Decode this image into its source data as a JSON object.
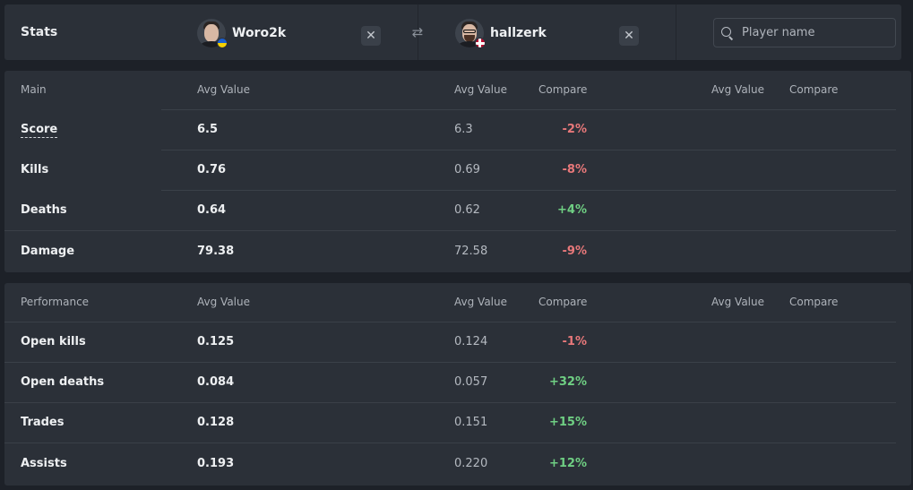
{
  "header": {
    "stats_label": "Stats",
    "player1": {
      "name": "Woro2k",
      "flag": "ukraine-flag"
    },
    "player2": {
      "name": "hallzerk",
      "flag": "norway-flag"
    },
    "search_placeholder": "Player name"
  },
  "main": {
    "section_label": "Main",
    "col_avg": "Avg Value",
    "col_compare": "Compare",
    "rows": [
      {
        "label": "Score",
        "p1": "6.5",
        "p2": "6.3",
        "compare": "-2%"
      },
      {
        "label": "Kills",
        "p1": "0.76",
        "p2": "0.69",
        "compare": "-8%"
      },
      {
        "label": "Deaths",
        "p1": "0.64",
        "p2": "0.62",
        "compare": "+4%"
      },
      {
        "label": "Damage",
        "p1": "79.38",
        "p2": "72.58",
        "compare": "-9%"
      }
    ]
  },
  "performance": {
    "section_label": "Performance",
    "col_avg": "Avg Value",
    "col_compare": "Compare",
    "rows": [
      {
        "label": "Open kills",
        "p1": "0.125",
        "p2": "0.124",
        "compare": "-1%"
      },
      {
        "label": "Open deaths",
        "p1": "0.084",
        "p2": "0.057",
        "compare": "+32%"
      },
      {
        "label": "Trades",
        "p1": "0.128",
        "p2": "0.151",
        "compare": "+15%"
      },
      {
        "label": "Assists",
        "p1": "0.193",
        "p2": "0.220",
        "compare": "+12%"
      }
    ]
  },
  "colors": {
    "negative": "#e8787a",
    "positive": "#6fcf83"
  }
}
